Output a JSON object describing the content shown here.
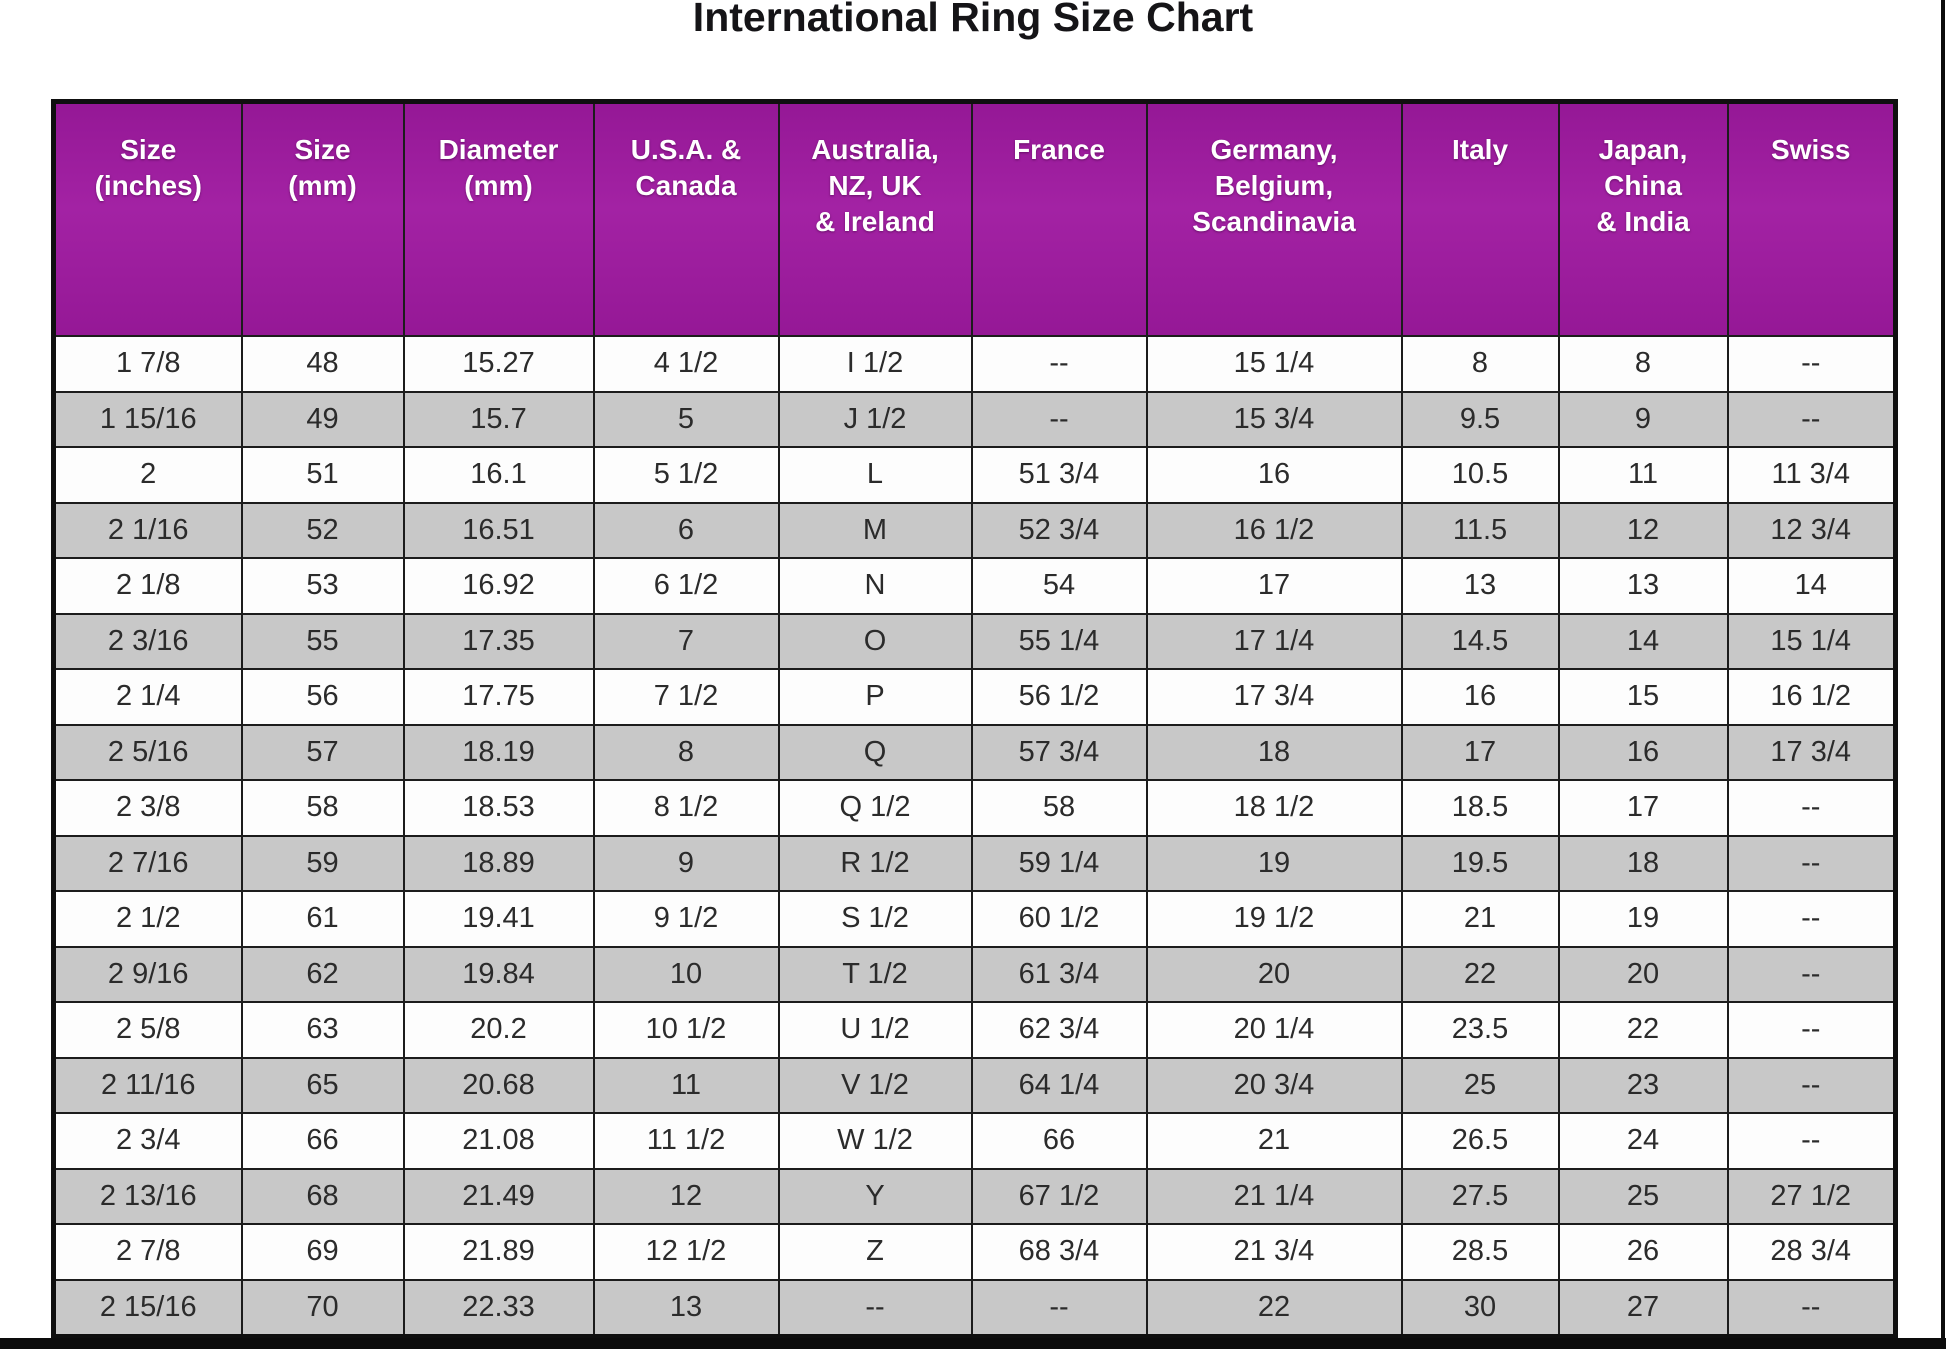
{
  "title": "International Ring Size Chart",
  "chart_data": {
    "type": "table",
    "title": "International Ring Size Chart",
    "columns": [
      "Size\n(inches)",
      "Size\n(mm)",
      "Diameter\n(mm)",
      "U.S.A. &\nCanada",
      "Australia,\nNZ, UK\n& Ireland",
      "France",
      "Germany,\nBelgium,\nScandinavia",
      "Italy",
      "Japan,\nChina\n& India",
      "Swiss"
    ],
    "rows": [
      [
        "1 7/8",
        "48",
        "15.27",
        "4 1/2",
        "I 1/2",
        "--",
        "15 1/4",
        "8",
        "8",
        "--"
      ],
      [
        "1 15/16",
        "49",
        "15.7",
        "5",
        "J 1/2",
        "--",
        "15 3/4",
        "9.5",
        "9",
        "--"
      ],
      [
        "2",
        "51",
        "16.1",
        "5 1/2",
        "L",
        "51 3/4",
        "16",
        "10.5",
        "11",
        "11 3/4"
      ],
      [
        "2 1/16",
        "52",
        "16.51",
        "6",
        "M",
        "52 3/4",
        "16 1/2",
        "11.5",
        "12",
        "12 3/4"
      ],
      [
        "2 1/8",
        "53",
        "16.92",
        "6 1/2",
        "N",
        "54",
        "17",
        "13",
        "13",
        "14"
      ],
      [
        "2 3/16",
        "55",
        "17.35",
        "7",
        "O",
        "55 1/4",
        "17 1/4",
        "14.5",
        "14",
        "15 1/4"
      ],
      [
        "2 1/4",
        "56",
        "17.75",
        "7 1/2",
        "P",
        "56 1/2",
        "17 3/4",
        "16",
        "15",
        "16 1/2"
      ],
      [
        "2 5/16",
        "57",
        "18.19",
        "8",
        "Q",
        "57 3/4",
        "18",
        "17",
        "16",
        "17 3/4"
      ],
      [
        "2 3/8",
        "58",
        "18.53",
        "8 1/2",
        "Q 1/2",
        "58",
        "18 1/2",
        "18.5",
        "17",
        "--"
      ],
      [
        "2 7/16",
        "59",
        "18.89",
        "9",
        "R 1/2",
        "59 1/4",
        "19",
        "19.5",
        "18",
        "--"
      ],
      [
        "2 1/2",
        "61",
        "19.41",
        "9 1/2",
        "S 1/2",
        "60 1/2",
        "19 1/2",
        "21",
        "19",
        "--"
      ],
      [
        "2 9/16",
        "62",
        "19.84",
        "10",
        "T 1/2",
        "61 3/4",
        "20",
        "22",
        "20",
        "--"
      ],
      [
        "2 5/8",
        "63",
        "20.2",
        "10 1/2",
        "U 1/2",
        "62 3/4",
        "20 1/4",
        "23.5",
        "22",
        "--"
      ],
      [
        "2 11/16",
        "65",
        "20.68",
        "11",
        "V 1/2",
        "64 1/4",
        "20 3/4",
        "25",
        "23",
        "--"
      ],
      [
        "2 3/4",
        "66",
        "21.08",
        "11 1/2",
        "W 1/2",
        "66",
        "21",
        "26.5",
        "24",
        "--"
      ],
      [
        "2 13/16",
        "68",
        "21.49",
        "12",
        "Y",
        "67 1/2",
        "21 1/4",
        "27.5",
        "25",
        "27 1/2"
      ],
      [
        "2 7/8",
        "69",
        "21.89",
        "12 1/2",
        "Z",
        "68 3/4",
        "21 3/4",
        "28.5",
        "26",
        "28 3/4"
      ],
      [
        "2 15/16",
        "70",
        "22.33",
        "13",
        "--",
        "--",
        "22",
        "30",
        "27",
        "--"
      ]
    ],
    "layout_hints": {
      "header_rows": 1,
      "alternating_row_shading": "even rows gray",
      "grid": "on"
    }
  },
  "colors": {
    "header_bg": "#951896",
    "header_text": "#ffffff",
    "row_alt_bg": "#c8c8c8",
    "row_bg": "#fdfdfd",
    "grid_line": "#1c1c1c",
    "title_text": "#151417",
    "bottom_bar": "#0c0c0c"
  }
}
